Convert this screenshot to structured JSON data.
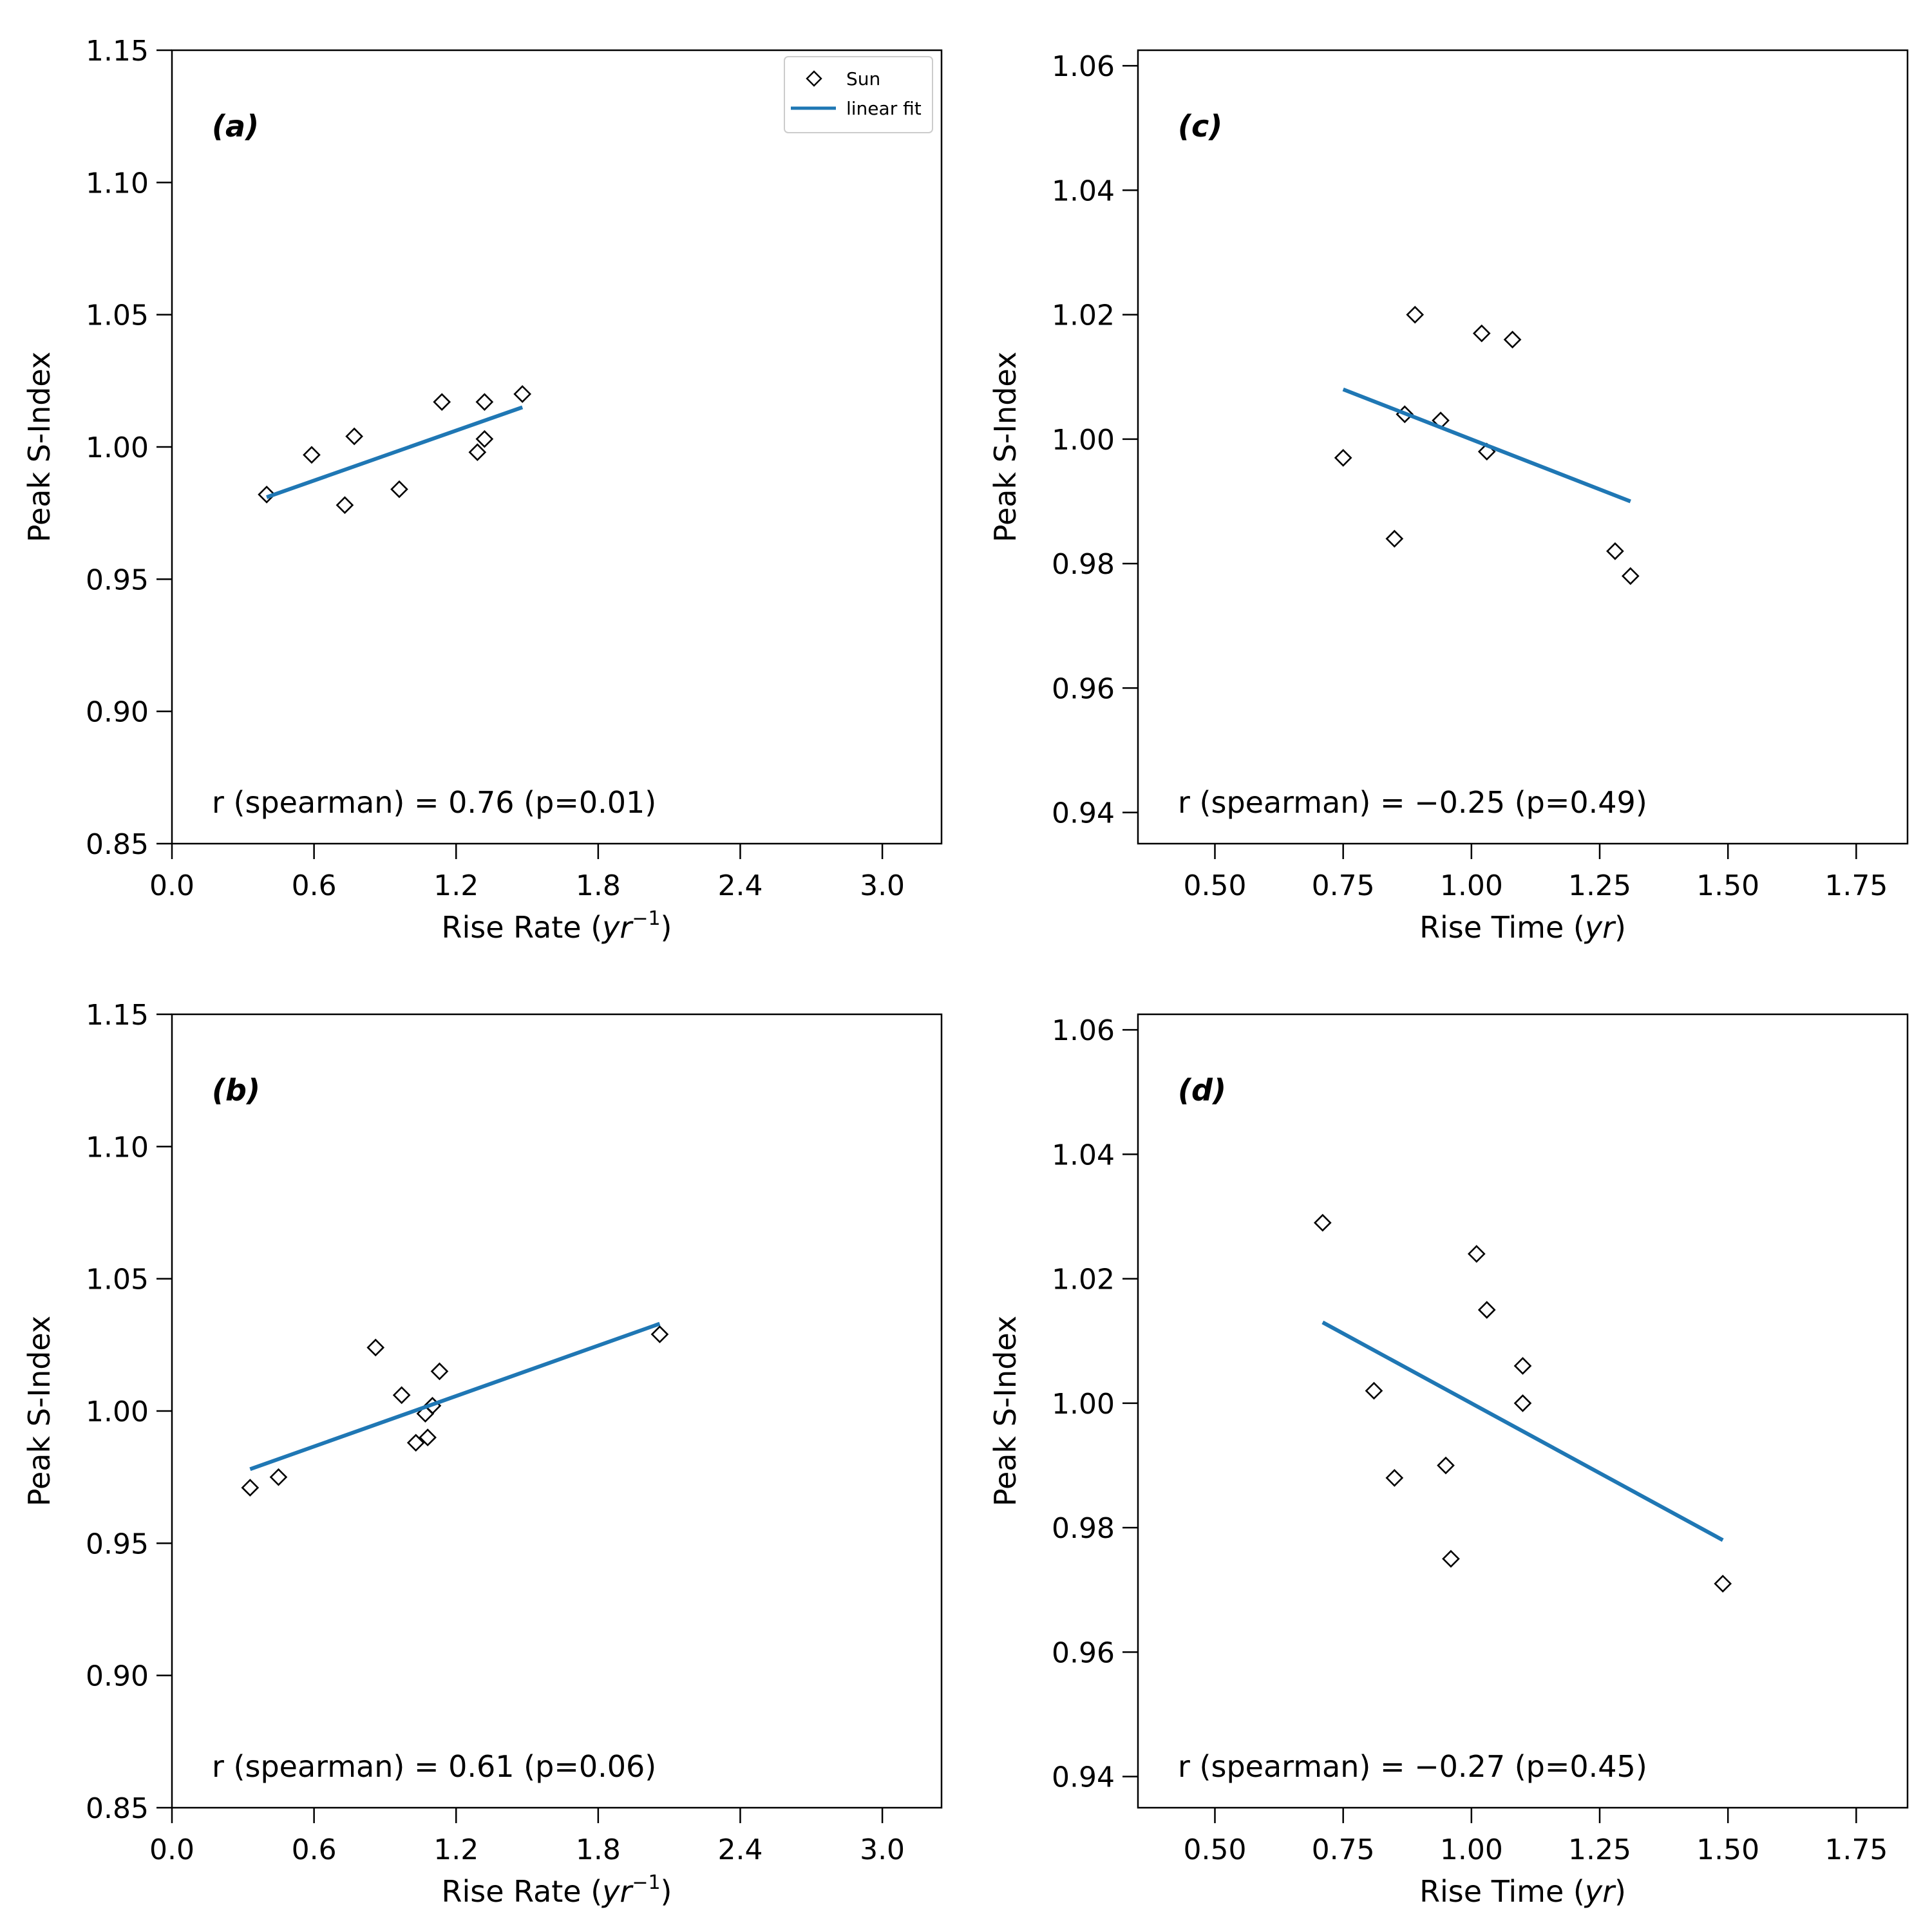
{
  "figure": {
    "legend": {
      "marker_label": "Sun",
      "line_label": "linear fit",
      "location": "top-right of panel (a)"
    }
  },
  "colors": {
    "fit_line": "#1f77b4",
    "marker_edge": "#000000",
    "axes": "#000000"
  },
  "chart_data": [
    {
      "id": "a",
      "type": "scatter",
      "panel_label": "(a)",
      "xlabel": "Rise Rate (yr⁻¹)",
      "xlabel_main": "Rise Rate (",
      "xlabel_unit": "yr",
      "xlabel_sup": "−1",
      "xlabel_close": ")",
      "ylabel": "Peak S-Index",
      "xlim": [
        0.0,
        3.25
      ],
      "ylim": [
        0.85,
        1.15
      ],
      "xticks": [
        0.0,
        0.6,
        1.2,
        1.8,
        2.4,
        3.0
      ],
      "xtick_labels": [
        "0.0",
        "0.6",
        "1.2",
        "1.8",
        "2.4",
        "3.0"
      ],
      "yticks": [
        0.85,
        0.9,
        0.95,
        1.0,
        1.05,
        1.1,
        1.15
      ],
      "ytick_labels": [
        "0.85",
        "0.90",
        "0.95",
        "1.00",
        "1.05",
        "1.10",
        "1.15"
      ],
      "series": [
        {
          "name": "Sun",
          "kind": "scatter",
          "x": [
            0.4,
            0.59,
            0.73,
            0.77,
            0.96,
            1.14,
            1.29,
            1.32,
            1.32,
            1.48
          ],
          "y": [
            0.982,
            0.997,
            0.978,
            1.004,
            0.984,
            1.017,
            0.998,
            1.017,
            1.003,
            1.02
          ]
        },
        {
          "name": "linear fit",
          "kind": "line",
          "x": [
            0.4,
            1.48
          ],
          "y": [
            0.981,
            1.015
          ]
        }
      ],
      "stat_text": "r (spearman) = 0.76  (p=0.01)",
      "show_legend": true
    },
    {
      "id": "b",
      "type": "scatter",
      "panel_label": "(b)",
      "xlabel": "Rise Rate (yr⁻¹)",
      "xlabel_main": "Rise Rate (",
      "xlabel_unit": "yr",
      "xlabel_sup": "−1",
      "xlabel_close": ")",
      "ylabel": "Peak S-Index",
      "xlim": [
        0.0,
        3.25
      ],
      "ylim": [
        0.85,
        1.15
      ],
      "xticks": [
        0.0,
        0.6,
        1.2,
        1.8,
        2.4,
        3.0
      ],
      "xtick_labels": [
        "0.0",
        "0.6",
        "1.2",
        "1.8",
        "2.4",
        "3.0"
      ],
      "yticks": [
        0.85,
        0.9,
        0.95,
        1.0,
        1.05,
        1.1,
        1.15
      ],
      "ytick_labels": [
        "0.85",
        "0.90",
        "0.95",
        "1.00",
        "1.05",
        "1.10",
        "1.15"
      ],
      "series": [
        {
          "name": "Sun",
          "kind": "scatter",
          "x": [
            0.33,
            0.45,
            0.86,
            0.97,
            1.03,
            1.07,
            1.08,
            1.1,
            1.13,
            2.06
          ],
          "y": [
            0.971,
            0.975,
            1.024,
            1.006,
            0.988,
            0.999,
            0.99,
            1.002,
            1.015,
            1.029
          ]
        },
        {
          "name": "linear fit",
          "kind": "line",
          "x": [
            0.33,
            2.06
          ],
          "y": [
            0.978,
            1.033
          ]
        }
      ],
      "stat_text": "r (spearman) = 0.61  (p=0.06)",
      "show_legend": false
    },
    {
      "id": "c",
      "type": "scatter",
      "panel_label": "(c)",
      "xlabel": "Rise Time (yr)",
      "xlabel_main": "Rise Time (",
      "xlabel_unit": "yr",
      "xlabel_sup": "",
      "xlabel_close": ")",
      "ylabel": "Peak S-Index",
      "xlim": [
        0.35,
        1.85
      ],
      "ylim": [
        0.935,
        1.0625
      ],
      "xticks": [
        0.5,
        0.75,
        1.0,
        1.25,
        1.5,
        1.75
      ],
      "xtick_labels": [
        "0.50",
        "0.75",
        "1.00",
        "1.25",
        "1.50",
        "1.75"
      ],
      "yticks": [
        0.94,
        0.96,
        0.98,
        1.0,
        1.02,
        1.04,
        1.06
      ],
      "ytick_labels": [
        "0.94",
        "0.96",
        "0.98",
        "1.00",
        "1.02",
        "1.04",
        "1.06"
      ],
      "series": [
        {
          "name": "Sun",
          "kind": "scatter",
          "x": [
            0.75,
            0.85,
            0.87,
            0.89,
            0.94,
            1.02,
            1.03,
            1.08,
            1.28,
            1.31
          ],
          "y": [
            0.997,
            0.984,
            1.004,
            1.02,
            1.003,
            1.017,
            0.998,
            1.016,
            0.982,
            0.978
          ]
        },
        {
          "name": "linear fit",
          "kind": "line",
          "x": [
            0.75,
            1.31
          ],
          "y": [
            1.008,
            0.99
          ]
        }
      ],
      "stat_text": "r (spearman) = −0.25  (p=0.49)",
      "show_legend": false
    },
    {
      "id": "d",
      "type": "scatter",
      "panel_label": "(d)",
      "xlabel": "Rise Time (yr)",
      "xlabel_main": "Rise Time (",
      "xlabel_unit": "yr",
      "xlabel_sup": "",
      "xlabel_close": ")",
      "ylabel": "Peak S-Index",
      "xlim": [
        0.35,
        1.85
      ],
      "ylim": [
        0.935,
        1.0625
      ],
      "xticks": [
        0.5,
        0.75,
        1.0,
        1.25,
        1.5,
        1.75
      ],
      "xtick_labels": [
        "0.50",
        "0.75",
        "1.00",
        "1.25",
        "1.50",
        "1.75"
      ],
      "yticks": [
        0.94,
        0.96,
        0.98,
        1.0,
        1.02,
        1.04,
        1.06
      ],
      "ytick_labels": [
        "0.94",
        "0.96",
        "0.98",
        "1.00",
        "1.02",
        "1.04",
        "1.06"
      ],
      "series": [
        {
          "name": "Sun",
          "kind": "scatter",
          "x": [
            0.71,
            0.81,
            0.85,
            0.95,
            0.96,
            1.01,
            1.03,
            1.1,
            1.1,
            1.49
          ],
          "y": [
            1.029,
            1.002,
            0.988,
            0.99,
            0.975,
            1.024,
            1.015,
            1.006,
            1.0,
            0.971
          ]
        },
        {
          "name": "linear fit",
          "kind": "line",
          "x": [
            0.71,
            1.49
          ],
          "y": [
            1.013,
            0.978
          ]
        }
      ],
      "stat_text": "r (spearman) = −0.27  (p=0.45)",
      "show_legend": false
    }
  ]
}
